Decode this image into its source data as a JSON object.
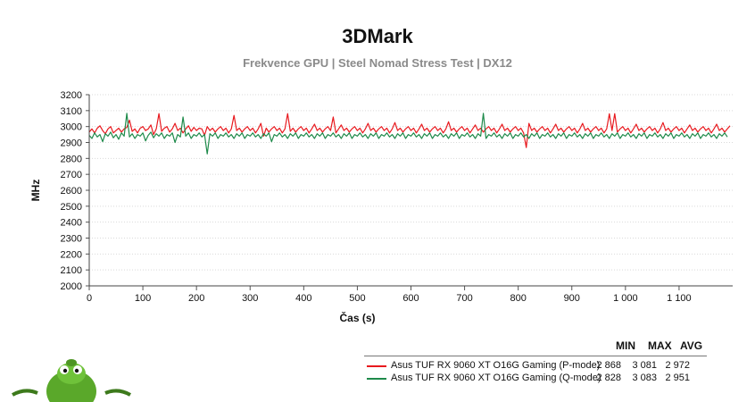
{
  "chart_data": {
    "type": "line",
    "title": "3DMark",
    "subtitle": "Frekvence GPU | Steel Nomad Stress Test | DX12",
    "xlabel": "Čas (s)",
    "ylabel": "MHz",
    "xlim": [
      0,
      1200
    ],
    "ylim": [
      2000,
      3200
    ],
    "x_ticks": [
      0,
      100,
      200,
      300,
      400,
      500,
      600,
      700,
      800,
      900,
      1000,
      1100
    ],
    "x_tick_labels": [
      "0",
      "100",
      "200",
      "300",
      "400",
      "500",
      "600",
      "700",
      "800",
      "900",
      "1 000",
      "1 100"
    ],
    "y_ticks": [
      2000,
      2100,
      2200,
      2300,
      2400,
      2500,
      2600,
      2700,
      2800,
      2900,
      3000,
      3100,
      3200
    ],
    "y_tick_labels": [
      "2000",
      "2100",
      "2200",
      "2300",
      "2400",
      "2500",
      "2600",
      "2700",
      "2800",
      "2900",
      "3000",
      "3100",
      "3200"
    ],
    "grid": true,
    "legend_placement": "bottom-right",
    "stats_headers": [
      "MIN",
      "MAX",
      "AVG"
    ],
    "series": [
      {
        "name": "Asus TUF RX 9060 XT O16G Gaming (P-mode)",
        "color": "#e8191e",
        "min": "2 868",
        "max": "3 081",
        "avg": "2 972",
        "x_start": 0,
        "x_step": 5,
        "values": [
          2965,
          2985,
          2960,
          2990,
          3005,
          2975,
          2955,
          2985,
          3000,
          2960,
          2975,
          2990,
          2965,
          2985,
          2995,
          3040,
          2970,
          2985,
          2960,
          2990,
          3000,
          2975,
          2985,
          3010,
          2950,
          2985,
          3081,
          2970,
          2990,
          3000,
          2965,
          2985,
          3020,
          2975,
          2990,
          2960,
          2985,
          3005,
          2970,
          2995,
          2975,
          2990,
          2985,
          2945,
          3000,
          2975,
          2990,
          2965,
          2985,
          3000,
          2975,
          2990,
          2960,
          2985,
          3070,
          2975,
          2990,
          2965,
          2985,
          3000,
          2975,
          2990,
          2960,
          2985,
          3020,
          2940,
          2990,
          2965,
          2985,
          3000,
          2975,
          2990,
          2960,
          2985,
          3081,
          2970,
          2990,
          2965,
          2985,
          3000,
          2975,
          2990,
          2960,
          2985,
          3015,
          2975,
          2990,
          2965,
          2985,
          3000,
          2975,
          3060,
          2960,
          2985,
          3010,
          2975,
          2990,
          2965,
          2985,
          3000,
          2975,
          2990,
          2960,
          2985,
          3020,
          2975,
          2990,
          2965,
          2985,
          3000,
          2975,
          2990,
          2960,
          2985,
          3025,
          2975,
          2990,
          2965,
          2985,
          3000,
          2975,
          2990,
          2960,
          2985,
          3015,
          2975,
          2990,
          2965,
          2985,
          3000,
          2975,
          2990,
          2960,
          2985,
          3030,
          2975,
          2990,
          2965,
          2985,
          3000,
          2975,
          2990,
          2960,
          2985,
          3010,
          2975,
          2990,
          2965,
          2985,
          3000,
          2975,
          2990,
          2960,
          2985,
          3015,
          2975,
          2990,
          2965,
          2985,
          3000,
          2975,
          2990,
          2960,
          2868,
          3020,
          2975,
          2990,
          2965,
          2985,
          3000,
          2975,
          2990,
          2960,
          2985,
          3015,
          2975,
          2990,
          2965,
          2985,
          3000,
          2975,
          2990,
          2960,
          2985,
          3020,
          2975,
          2990,
          2965,
          2985,
          3000,
          2975,
          2990,
          2960,
          2985,
          3080,
          2975,
          3081,
          2965,
          2985,
          3000,
          2975,
          2990,
          2960,
          2985,
          3015,
          2975,
          2990,
          2965,
          2985,
          3000,
          2975,
          2990,
          2960,
          2985,
          3025,
          2975,
          2990,
          2965,
          2985,
          3000,
          2975,
          2990,
          2960,
          2985,
          3010,
          2975,
          2990,
          2965,
          2985,
          3000,
          2975,
          2990,
          2960,
          2985,
          3015,
          2975,
          2990,
          2965,
          2985,
          3005
        ]
      },
      {
        "name": "Asus TUF RX 9060 XT O16G Gaming (Q-mode)",
        "color": "#1e8a4a",
        "min": "2 828",
        "max": "3 083",
        "avg": "2 951",
        "x_start": 0,
        "x_step": 5,
        "values": [
          2945,
          2925,
          2960,
          2935,
          2950,
          2905,
          2955,
          2940,
          2965,
          2930,
          2950,
          2920,
          2960,
          2940,
          3083,
          2935,
          2955,
          2925,
          2950,
          2940,
          2960,
          2910,
          2945,
          2965,
          2930,
          2955,
          2940,
          2960,
          2925,
          2950,
          2940,
          2960,
          2900,
          2950,
          2935,
          3060,
          2940,
          2960,
          2925,
          2950,
          2940,
          2960,
          2935,
          2950,
          2828,
          2955,
          2940,
          2960,
          2925,
          2950,
          2940,
          2960,
          2935,
          2950,
          2925,
          2955,
          2940,
          2960,
          2925,
          2950,
          2940,
          2960,
          2935,
          2950,
          2925,
          2955,
          2940,
          2960,
          2905,
          2950,
          2940,
          2960,
          2935,
          2950,
          2925,
          2955,
          2940,
          2960,
          2925,
          2950,
          2940,
          2960,
          2935,
          2950,
          2925,
          2955,
          2940,
          2960,
          2925,
          2950,
          2940,
          2960,
          2935,
          2950,
          2925,
          2955,
          2940,
          2960,
          2925,
          2950,
          2940,
          2960,
          2935,
          2950,
          2925,
          2955,
          2940,
          2960,
          2925,
          2950,
          2940,
          2960,
          2935,
          2950,
          2925,
          2955,
          2940,
          2960,
          2925,
          2950,
          2940,
          2960,
          2935,
          2950,
          2925,
          2955,
          2940,
          2960,
          2925,
          2950,
          2940,
          2960,
          2935,
          2950,
          2925,
          2955,
          2940,
          2960,
          2925,
          2950,
          2940,
          2960,
          2935,
          2950,
          2925,
          2955,
          2940,
          3083,
          2925,
          2950,
          2940,
          2960,
          2935,
          2950,
          2925,
          2955,
          2940,
          2960,
          2925,
          2950,
          2940,
          2960,
          2935,
          2950,
          2925,
          2955,
          2940,
          2960,
          2925,
          2950,
          2940,
          2960,
          2935,
          2950,
          2925,
          2955,
          2940,
          2960,
          2925,
          2950,
          2940,
          2960,
          2935,
          2950,
          2925,
          2955,
          2940,
          2960,
          2925,
          2950,
          2940,
          2960,
          2935,
          2950,
          2925,
          2955,
          2940,
          2960,
          2925,
          2950,
          2940,
          2960,
          2935,
          2950,
          2925,
          2955,
          2940,
          2960,
          2925,
          2950,
          2940,
          2960,
          2935,
          2950,
          2925,
          2955,
          2940,
          2960,
          2925,
          2950,
          2940,
          2960,
          2935,
          2950,
          2925,
          2955,
          2940,
          2960,
          2925,
          2950,
          2940,
          2960,
          2935,
          2950,
          2925,
          2955,
          2940,
          2960,
          2935
        ]
      }
    ]
  },
  "mascot": {
    "icon": "green-alien-mascot-icon",
    "body_color": "#5aa82a"
  }
}
